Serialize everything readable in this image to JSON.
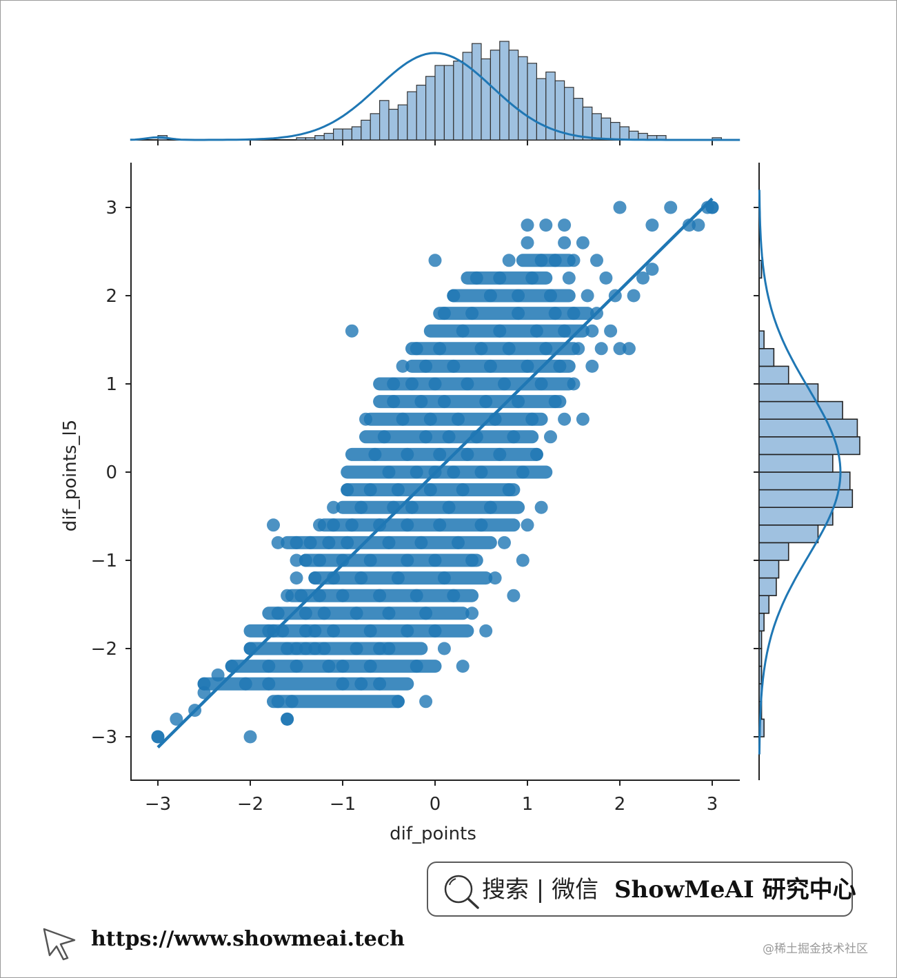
{
  "chart_data": {
    "type": "scatter",
    "kind": "jointplot with regression line and marginal histograms (KDE)",
    "xlabel": "dif_points",
    "ylabel": "dif_points_l5",
    "xlim": [
      -3.3,
      3.3
    ],
    "ylim": [
      -3.5,
      3.5
    ],
    "xticks": [
      -3,
      -2,
      -1,
      0,
      1,
      2,
      3
    ],
    "yticks": [
      -3,
      -2,
      -1,
      0,
      1,
      2,
      3
    ],
    "xtick_labels": [
      "−3",
      "−2",
      "−1",
      "0",
      "1",
      "2",
      "3"
    ],
    "ytick_labels": [
      "−3",
      "−2",
      "−1",
      "0",
      "1",
      "2",
      "3"
    ],
    "color": "#1f77b4",
    "hist_fill": "#9fc1e0",
    "regression_line": {
      "x": [
        -3.0,
        3.0
      ],
      "y": [
        -3.12,
        3.1
      ]
    },
    "points": [
      [
        -3.0,
        -3.0
      ],
      [
        -2.8,
        -2.8
      ],
      [
        -2.6,
        -2.7
      ],
      [
        -2.5,
        -2.5
      ],
      [
        -2.5,
        -2.4
      ],
      [
        -2.35,
        -2.3
      ],
      [
        -2.2,
        -2.2
      ],
      [
        -2.0,
        -2.0
      ],
      [
        -2.0,
        -3.0
      ],
      [
        -2.05,
        -2.4
      ],
      [
        -1.8,
        -1.8
      ],
      [
        -1.8,
        -2.2
      ],
      [
        -1.8,
        -2.4
      ],
      [
        -1.75,
        -1.8
      ],
      [
        -1.7,
        -1.6
      ],
      [
        -1.7,
        -2.6
      ],
      [
        -1.65,
        -1.8
      ],
      [
        -1.6,
        -1.4
      ],
      [
        -1.6,
        -2.0
      ],
      [
        -1.6,
        -2.8
      ],
      [
        -1.75,
        -0.6
      ],
      [
        -1.7,
        -0.8
      ],
      [
        -1.55,
        -2.6
      ],
      [
        -1.5,
        -0.8
      ],
      [
        -1.5,
        -1.0
      ],
      [
        -1.5,
        -1.2
      ],
      [
        -1.5,
        -2.0
      ],
      [
        -1.5,
        -2.2
      ],
      [
        -1.45,
        -1.4
      ],
      [
        -1.4,
        -1.0
      ],
      [
        -1.4,
        -1.6
      ],
      [
        -1.4,
        -1.8
      ],
      [
        -1.4,
        -2.0
      ],
      [
        -1.35,
        -0.8
      ],
      [
        -1.3,
        -1.2
      ],
      [
        -1.3,
        -1.8
      ],
      [
        -1.3,
        -2.0
      ],
      [
        -1.25,
        -1.0
      ],
      [
        -1.25,
        -1.4
      ],
      [
        -1.25,
        -0.6
      ],
      [
        -1.2,
        -2.0
      ],
      [
        -1.2,
        -1.6
      ],
      [
        -1.15,
        -2.2
      ],
      [
        -1.15,
        -0.8
      ],
      [
        -1.1,
        -1.2
      ],
      [
        -1.1,
        -1.8
      ],
      [
        -1.1,
        -0.4
      ],
      [
        -1.1,
        -0.6
      ],
      [
        -1.0,
        -1.0
      ],
      [
        -1.0,
        -2.4
      ],
      [
        -1.0,
        -2.2
      ],
      [
        -1.0,
        -1.4
      ],
      [
        -0.95,
        -0.8
      ],
      [
        -0.95,
        -0.2
      ],
      [
        -0.9,
        -0.6
      ],
      [
        -0.9,
        1.6
      ],
      [
        -0.85,
        -1.6
      ],
      [
        -0.85,
        -2.0
      ],
      [
        -0.8,
        -0.4
      ],
      [
        -0.8,
        -1.2
      ],
      [
        -0.8,
        -2.4
      ],
      [
        -0.75,
        0.6
      ],
      [
        -0.7,
        -0.2
      ],
      [
        -0.7,
        -1.0
      ],
      [
        -0.7,
        -1.8
      ],
      [
        -0.7,
        -2.2
      ],
      [
        -0.65,
        0.2
      ],
      [
        -0.6,
        -0.6
      ],
      [
        -0.6,
        -1.4
      ],
      [
        -0.6,
        -2.0
      ],
      [
        -0.6,
        -2.4
      ],
      [
        -0.55,
        0.4
      ],
      [
        -0.5,
        -0.8
      ],
      [
        -0.5,
        -1.6
      ],
      [
        -0.5,
        -2.0
      ],
      [
        -0.5,
        0.0
      ],
      [
        -0.45,
        -0.4
      ],
      [
        -0.45,
        0.8
      ],
      [
        -0.45,
        1.0
      ],
      [
        -0.4,
        -0.2
      ],
      [
        -0.4,
        -1.2
      ],
      [
        -0.4,
        -2.6
      ],
      [
        -0.35,
        1.2
      ],
      [
        -0.35,
        0.6
      ],
      [
        -0.3,
        -0.6
      ],
      [
        -0.3,
        -1.0
      ],
      [
        -0.3,
        -1.8
      ],
      [
        -0.3,
        0.2
      ],
      [
        -0.25,
        1.0
      ],
      [
        -0.25,
        -0.4
      ],
      [
        -0.2,
        0.0
      ],
      [
        -0.2,
        -1.4
      ],
      [
        -0.2,
        -2.2
      ],
      [
        -0.2,
        1.4
      ],
      [
        -0.15,
        0.8
      ],
      [
        -0.15,
        -0.8
      ],
      [
        -0.1,
        0.4
      ],
      [
        -0.1,
        -1.6
      ],
      [
        -0.1,
        -2.6
      ],
      [
        -0.1,
        1.2
      ],
      [
        -0.05,
        -0.2
      ],
      [
        -0.05,
        0.6
      ],
      [
        0.0,
        0.0
      ],
      [
        0.0,
        -1.0
      ],
      [
        0.0,
        1.0
      ],
      [
        0.0,
        -1.8
      ],
      [
        0.0,
        2.4
      ],
      [
        0.05,
        1.4
      ],
      [
        0.05,
        0.2
      ],
      [
        0.05,
        -0.6
      ],
      [
        0.1,
        0.8
      ],
      [
        0.1,
        -1.2
      ],
      [
        0.1,
        1.8
      ],
      [
        0.1,
        -2.0
      ],
      [
        0.15,
        0.4
      ],
      [
        0.15,
        -0.4
      ],
      [
        0.2,
        1.2
      ],
      [
        0.2,
        2.0
      ],
      [
        0.2,
        0.0
      ],
      [
        0.2,
        -1.4
      ],
      [
        0.25,
        0.6
      ],
      [
        0.25,
        -0.8
      ],
      [
        0.3,
        1.6
      ],
      [
        0.3,
        -0.2
      ],
      [
        0.3,
        -2.2
      ],
      [
        0.35,
        1.0
      ],
      [
        0.35,
        0.2
      ],
      [
        0.4,
        1.8
      ],
      [
        0.4,
        -1.0
      ],
      [
        0.4,
        -1.6
      ],
      [
        0.45,
        0.4
      ],
      [
        0.45,
        2.2
      ],
      [
        0.5,
        1.4
      ],
      [
        0.5,
        -0.6
      ],
      [
        0.5,
        0.0
      ],
      [
        0.55,
        0.8
      ],
      [
        0.55,
        -1.8
      ],
      [
        0.6,
        2.0
      ],
      [
        0.6,
        1.2
      ],
      [
        0.6,
        -0.4
      ],
      [
        0.65,
        0.6
      ],
      [
        0.65,
        -1.2
      ],
      [
        0.7,
        1.6
      ],
      [
        0.7,
        0.2
      ],
      [
        0.7,
        2.2
      ],
      [
        0.75,
        -0.8
      ],
      [
        0.75,
        1.0
      ],
      [
        0.8,
        1.4
      ],
      [
        0.8,
        -0.2
      ],
      [
        0.8,
        2.4
      ],
      [
        0.85,
        0.4
      ],
      [
        0.85,
        -1.4
      ],
      [
        0.9,
        1.8
      ],
      [
        0.9,
        0.8
      ],
      [
        0.9,
        2.0
      ],
      [
        0.95,
        0.0
      ],
      [
        0.95,
        -1.0
      ],
      [
        1.0,
        1.2
      ],
      [
        1.0,
        2.8
      ],
      [
        1.0,
        2.6
      ],
      [
        1.0,
        -0.6
      ],
      [
        1.05,
        0.6
      ],
      [
        1.05,
        2.2
      ],
      [
        1.1,
        1.6
      ],
      [
        1.1,
        0.2
      ],
      [
        1.15,
        2.4
      ],
      [
        1.15,
        1.0
      ],
      [
        1.15,
        -0.4
      ],
      [
        1.2,
        1.4
      ],
      [
        1.2,
        2.8
      ],
      [
        1.25,
        0.4
      ],
      [
        1.25,
        2.0
      ],
      [
        1.3,
        1.8
      ],
      [
        1.3,
        0.8
      ],
      [
        1.3,
        2.4
      ],
      [
        1.35,
        1.2
      ],
      [
        1.4,
        2.6
      ],
      [
        1.4,
        1.6
      ],
      [
        1.4,
        0.6
      ],
      [
        1.4,
        2.8
      ],
      [
        1.45,
        2.2
      ],
      [
        1.5,
        1.0
      ],
      [
        1.5,
        1.8
      ],
      [
        1.5,
        2.4
      ],
      [
        1.55,
        1.4
      ],
      [
        1.6,
        0.6
      ],
      [
        1.6,
        2.6
      ],
      [
        1.65,
        2.0
      ],
      [
        1.7,
        1.6
      ],
      [
        1.7,
        1.2
      ],
      [
        1.75,
        2.4
      ],
      [
        1.75,
        1.8
      ],
      [
        1.8,
        1.4
      ],
      [
        1.85,
        2.2
      ],
      [
        1.9,
        1.6
      ],
      [
        1.95,
        2.0
      ],
      [
        2.0,
        3.0
      ],
      [
        2.0,
        1.4
      ],
      [
        2.1,
        1.4
      ],
      [
        2.15,
        2.0
      ],
      [
        2.25,
        2.2
      ],
      [
        2.35,
        2.3
      ],
      [
        2.35,
        2.8
      ],
      [
        2.55,
        3.0
      ],
      [
        2.75,
        2.8
      ],
      [
        2.85,
        2.8
      ],
      [
        2.95,
        3.0
      ],
      [
        3.0,
        3.0
      ],
      [
        3.0,
        3.0
      ]
    ],
    "bands": [
      {
        "y": -3.0,
        "x": [
          -3.0,
          -3.0
        ]
      },
      {
        "y": -2.8,
        "x": [
          -1.6,
          -1.6
        ]
      },
      {
        "y": -2.6,
        "x": [
          -1.75,
          -0.4
        ]
      },
      {
        "y": -2.4,
        "x": [
          -2.5,
          -0.3
        ]
      },
      {
        "y": -2.2,
        "x": [
          -2.2,
          0.0
        ]
      },
      {
        "y": -2.0,
        "x": [
          -2.0,
          -0.15
        ]
      },
      {
        "y": -1.8,
        "x": [
          -2.0,
          0.35
        ]
      },
      {
        "y": -1.6,
        "x": [
          -1.8,
          0.3
        ]
      },
      {
        "y": -1.4,
        "x": [
          -1.55,
          0.4
        ]
      },
      {
        "y": -1.2,
        "x": [
          -1.3,
          0.55
        ]
      },
      {
        "y": -1.0,
        "x": [
          -1.4,
          0.45
        ]
      },
      {
        "y": -0.8,
        "x": [
          -1.6,
          0.6
        ]
      },
      {
        "y": -0.6,
        "x": [
          -1.2,
          0.85
        ]
      },
      {
        "y": -0.4,
        "x": [
          -1.0,
          0.9
        ]
      },
      {
        "y": -0.2,
        "x": [
          -0.95,
          0.85
        ]
      },
      {
        "y": 0.0,
        "x": [
          -0.95,
          1.2
        ]
      },
      {
        "y": 0.2,
        "x": [
          -0.9,
          1.1
        ]
      },
      {
        "y": 0.4,
        "x": [
          -0.75,
          1.05
        ]
      },
      {
        "y": 0.6,
        "x": [
          -0.7,
          1.15
        ]
      },
      {
        "y": 0.8,
        "x": [
          -0.6,
          1.35
        ]
      },
      {
        "y": 1.0,
        "x": [
          -0.6,
          1.45
        ]
      },
      {
        "y": 1.2,
        "x": [
          -0.25,
          1.45
        ]
      },
      {
        "y": 1.4,
        "x": [
          -0.25,
          1.5
        ]
      },
      {
        "y": 1.6,
        "x": [
          -0.05,
          1.6
        ]
      },
      {
        "y": 1.8,
        "x": [
          0.05,
          1.65
        ]
      },
      {
        "y": 2.0,
        "x": [
          0.2,
          1.45
        ]
      },
      {
        "y": 2.2,
        "x": [
          0.35,
          1.2
        ]
      },
      {
        "y": 2.4,
        "x": [
          0.95,
          1.45
        ]
      }
    ],
    "hist_x": {
      "bin_start": -3.0,
      "bin_width": 0.1,
      "counts": [
        2,
        0,
        0,
        0,
        0,
        0,
        0,
        0,
        0,
        0,
        0,
        0,
        0,
        0,
        0,
        1,
        1,
        2,
        3,
        5,
        5,
        6,
        9,
        12,
        18,
        14,
        16,
        22,
        25,
        29,
        34,
        34,
        36,
        40,
        44,
        37,
        41,
        45,
        41,
        38,
        35,
        28,
        31,
        27,
        24,
        19,
        15,
        12,
        10,
        8,
        6,
        4,
        3,
        2,
        2,
        0,
        0,
        0,
        0,
        0,
        1
      ]
    },
    "hist_y": {
      "bin_start": -3.0,
      "bin_width": 0.2,
      "counts": [
        2,
        1,
        1,
        1,
        1,
        1,
        2,
        4,
        7,
        8,
        12,
        24,
        30,
        38,
        37,
        30,
        41,
        40,
        34,
        24,
        12,
        6,
        2,
        0,
        0,
        0,
        1
      ]
    }
  },
  "search_box": {
    "text": "搜索 | 微信",
    "brand": "ShowMeAI 研究中心"
  },
  "footer": {
    "url": "https://www.showmeai.tech",
    "credit": "@稀土掘金技术社区"
  }
}
